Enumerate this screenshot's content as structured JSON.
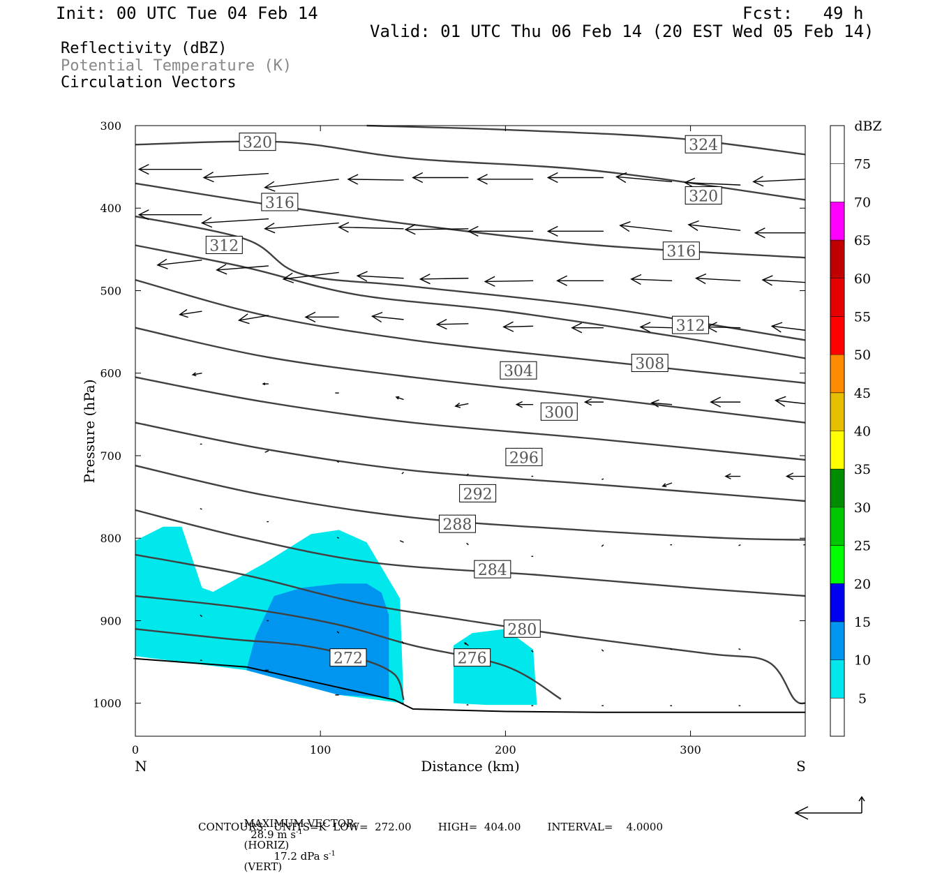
{
  "header": {
    "init": "Init: 00 UTC Tue 04 Feb 14",
    "fcst": "Fcst:   49 h",
    "valid": "Valid: 01 UTC Thu 06 Feb 14 (20 EST Wed 05 Feb 14)",
    "field1": "Reflectivity (dBZ)",
    "field2": "Potential Temperature (K)",
    "field3": "Circulation Vectors"
  },
  "footer": {
    "max_vector_label": "MAXIMUM VECTOR:",
    "horiz_value": "28.9 m s",
    "horiz_exp": "-1",
    "horiz_tag": "(HORIZ)",
    "vert_value": "17.2 dPa s",
    "vert_exp": "-1",
    "vert_tag": "(VERT)",
    "contours_line": "CONTOURS:  UNITS=K  LOW=  272.00        HIGH=  404.00        INTERVAL=    4.0000"
  },
  "colors": {
    "contour": "#404040",
    "dbz_5": "#00e8ec",
    "dbz_10": "#0096f0",
    "dbz_15": "#0000f0",
    "dbz_20": "#00ff00",
    "dbz_25": "#00c800",
    "dbz_30": "#008c00",
    "dbz_35": "#ffff00",
    "dbz_40": "#e6be00",
    "dbz_45": "#ff8c00",
    "dbz_50": "#ff0000",
    "dbz_55": "#e60000",
    "dbz_60": "#c00000",
    "dbz_65": "#ff00ff",
    "dbz_70": "#9b4fc8"
  },
  "chart_data": {
    "type": "cross-section",
    "xlabel": "Distance (km)",
    "ylabel": "Pressure (hPa)",
    "xlim": [
      0,
      362
    ],
    "ylim": [
      1040,
      300
    ],
    "xticks": [
      "0",
      "100",
      "200",
      "300"
    ],
    "yticks": [
      "300",
      "400",
      "500",
      "600",
      "700",
      "800",
      "900",
      "1000"
    ],
    "x_end_labels": {
      "left": "N",
      "right": "S"
    },
    "colorbar": {
      "title": "dBZ",
      "levels": [
        "5",
        "10",
        "15",
        "20",
        "25",
        "30",
        "35",
        "40",
        "45",
        "50",
        "55",
        "60",
        "65",
        "70",
        "75"
      ]
    },
    "terrain": [
      [
        0,
        946
      ],
      [
        60,
        956
      ],
      [
        100,
        976
      ],
      [
        140,
        996
      ],
      [
        150,
        1007
      ],
      [
        200,
        1010
      ],
      [
        250,
        1011
      ],
      [
        362,
        1011
      ]
    ],
    "reflectivity_5dbz": [
      [
        [
          0,
          803
        ],
        [
          15,
          786
        ],
        [
          25,
          786
        ],
        [
          36,
          860
        ],
        [
          42,
          865
        ],
        [
          70,
          830
        ],
        [
          95,
          795
        ],
        [
          110,
          790
        ],
        [
          125,
          805
        ],
        [
          143,
          873
        ],
        [
          145,
          1000
        ],
        [
          110,
          990
        ],
        [
          60,
          960
        ],
        [
          0,
          943
        ]
      ],
      [
        [
          172,
          1000
        ],
        [
          172,
          930
        ],
        [
          182,
          915
        ],
        [
          200,
          910
        ],
        [
          215,
          935
        ],
        [
          217,
          1002
        ],
        [
          190,
          1002
        ]
      ]
    ],
    "reflectivity_10dbz": [
      [
        [
          60,
          960
        ],
        [
          65,
          918
        ],
        [
          75,
          870
        ],
        [
          90,
          860
        ],
        [
          110,
          855
        ],
        [
          125,
          855
        ],
        [
          133,
          866
        ],
        [
          137,
          893
        ],
        [
          137,
          993
        ],
        [
          110,
          990
        ],
        [
          80,
          972
        ]
      ]
    ],
    "theta_contours": [
      {
        "label": "272",
        "points": [
          [
            0,
            910
          ],
          [
            50,
            922
          ],
          [
            90,
            930
          ],
          [
            120,
            945
          ],
          [
            140,
            965
          ],
          [
            145,
            996
          ]
        ]
      },
      {
        "label": "276",
        "points": [
          [
            0,
            870
          ],
          [
            60,
            885
          ],
          [
            110,
            905
          ],
          [
            150,
            930
          ],
          [
            200,
            955
          ],
          [
            230,
            995
          ]
        ]
      },
      {
        "label": "280",
        "points": [
          [
            0,
            820
          ],
          [
            60,
            845
          ],
          [
            120,
            878
          ],
          [
            180,
            900
          ],
          [
            240,
            920
          ],
          [
            310,
            940
          ],
          [
            342,
            950
          ],
          [
            356,
            995
          ],
          [
            362,
            1000
          ]
        ]
      },
      {
        "label": "284",
        "points": [
          [
            0,
            766
          ],
          [
            60,
            800
          ],
          [
            130,
            830
          ],
          [
            220,
            845
          ],
          [
            300,
            860
          ],
          [
            362,
            870
          ]
        ]
      },
      {
        "label": "288",
        "points": [
          [
            0,
            712
          ],
          [
            70,
            748
          ],
          [
            150,
            775
          ],
          [
            240,
            790
          ],
          [
            320,
            800
          ],
          [
            362,
            802
          ]
        ]
      },
      {
        "label": "292",
        "points": [
          [
            0,
            660
          ],
          [
            70,
            692
          ],
          [
            150,
            718
          ],
          [
            250,
            735
          ],
          [
            362,
            755
          ]
        ]
      },
      {
        "label": "296",
        "points": [
          [
            0,
            605
          ],
          [
            70,
            635
          ],
          [
            150,
            660
          ],
          [
            250,
            680
          ],
          [
            362,
            705
          ]
        ]
      },
      {
        "label": "300",
        "points": [
          [
            0,
            545
          ],
          [
            70,
            580
          ],
          [
            150,
            605
          ],
          [
            250,
            630
          ],
          [
            362,
            660
          ]
        ]
      },
      {
        "label": "304",
        "points": [
          [
            0,
            487
          ],
          [
            70,
            530
          ],
          [
            150,
            560
          ],
          [
            250,
            585
          ],
          [
            362,
            612
          ]
        ]
      },
      {
        "label": "308",
        "points": [
          [
            0,
            445
          ],
          [
            60,
            472
          ],
          [
            120,
            505
          ],
          [
            200,
            525
          ],
          [
            290,
            555
          ],
          [
            362,
            582
          ]
        ]
      },
      {
        "label": "312",
        "points": [
          [
            0,
            410
          ],
          [
            60,
            438
          ],
          [
            90,
            480
          ],
          [
            150,
            495
          ],
          [
            250,
            520
          ],
          [
            362,
            560
          ]
        ]
      },
      {
        "label": "316",
        "points": [
          [
            0,
            370
          ],
          [
            70,
            395
          ],
          [
            150,
            420
          ],
          [
            250,
            445
          ],
          [
            362,
            460
          ]
        ]
      },
      {
        "label": "320",
        "points": [
          [
            0,
            323
          ],
          [
            80,
            320
          ],
          [
            150,
            340
          ],
          [
            250,
            355
          ],
          [
            362,
            390
          ]
        ]
      },
      {
        "label": "324",
        "points": [
          [
            125,
            300
          ],
          [
            200,
            305
          ],
          [
            290,
            315
          ],
          [
            362,
            335
          ]
        ]
      }
    ],
    "contour_labels": [
      {
        "text": "320",
        "x": 66,
        "p": 320
      },
      {
        "text": "324",
        "x": 307,
        "p": 323
      },
      {
        "text": "316",
        "x": 78,
        "p": 393
      },
      {
        "text": "320",
        "x": 307,
        "p": 385
      },
      {
        "text": "312",
        "x": 48,
        "p": 445
      },
      {
        "text": "316",
        "x": 295,
        "p": 452
      },
      {
        "text": "312",
        "x": 300,
        "p": 542
      },
      {
        "text": "308",
        "x": 278,
        "p": 588
      },
      {
        "text": "304",
        "x": 207,
        "p": 597
      },
      {
        "text": "300",
        "x": 229,
        "p": 647
      },
      {
        "text": "296",
        "x": 210,
        "p": 702
      },
      {
        "text": "292",
        "x": 185,
        "p": 746
      },
      {
        "text": "288",
        "x": 174,
        "p": 783
      },
      {
        "text": "284",
        "x": 193,
        "p": 838
      },
      {
        "text": "280",
        "x": 209,
        "p": 910
      },
      {
        "text": "272",
        "x": 115,
        "p": 945
      },
      {
        "text": "276",
        "x": 182,
        "p": 945
      }
    ],
    "vectors": [
      [
        36,
        353,
        -34,
        0
      ],
      [
        72,
        358,
        -35,
        5
      ],
      [
        110,
        365,
        -40,
        10
      ],
      [
        145,
        366,
        -30,
        -1
      ],
      [
        180,
        363,
        -30,
        0
      ],
      [
        215,
        365,
        -30,
        0
      ],
      [
        253,
        363,
        -30,
        0
      ],
      [
        290,
        368,
        -30,
        -6
      ],
      [
        327,
        372,
        -30,
        -3
      ],
      [
        362,
        365,
        -28,
        3
      ],
      [
        36,
        408,
        -34,
        0
      ],
      [
        72,
        413,
        -36,
        5
      ],
      [
        110,
        418,
        -40,
        7
      ],
      [
        145,
        425,
        -35,
        -2
      ],
      [
        180,
        425,
        -34,
        1
      ],
      [
        215,
        428,
        -35,
        0
      ],
      [
        253,
        428,
        -30,
        0
      ],
      [
        290,
        428,
        -28,
        -7
      ],
      [
        327,
        427,
        -28,
        -7
      ],
      [
        362,
        430,
        -27,
        0
      ],
      [
        36,
        463,
        -24,
        6
      ],
      [
        72,
        470,
        -28,
        5
      ],
      [
        110,
        478,
        -30,
        8
      ],
      [
        145,
        485,
        -25,
        -3
      ],
      [
        180,
        485,
        -26,
        1
      ],
      [
        215,
        488,
        -26,
        1
      ],
      [
        253,
        488,
        -25,
        0
      ],
      [
        290,
        488,
        -22,
        -2
      ],
      [
        327,
        488,
        -24,
        -3
      ],
      [
        362,
        490,
        -23,
        -3
      ],
      [
        36,
        525,
        -12,
        4
      ],
      [
        72,
        530,
        -16,
        6
      ],
      [
        110,
        532,
        -18,
        0
      ],
      [
        145,
        535,
        -17,
        -4
      ],
      [
        180,
        540,
        -17,
        1
      ],
      [
        215,
        543,
        -16,
        1
      ],
      [
        253,
        545,
        -17,
        0
      ],
      [
        290,
        545,
        -17,
        -1
      ],
      [
        327,
        545,
        -18,
        -1
      ],
      [
        362,
        548,
        -18,
        -5
      ],
      [
        36,
        600,
        -5,
        2
      ],
      [
        72,
        613,
        -3,
        0
      ],
      [
        110,
        624,
        -2,
        0
      ],
      [
        145,
        632,
        -4,
        -3
      ],
      [
        180,
        637,
        -7,
        3
      ],
      [
        215,
        638,
        -9,
        0
      ],
      [
        253,
        635,
        -10,
        0
      ],
      [
        290,
        638,
        -11,
        -2
      ],
      [
        327,
        635,
        -16,
        0
      ],
      [
        362,
        637,
        -16,
        -4
      ],
      [
        36,
        686,
        -1,
        0
      ],
      [
        72,
        694,
        -2,
        2
      ],
      [
        110,
        708,
        -1,
        -1
      ],
      [
        145,
        720,
        -1,
        2
      ],
      [
        180,
        722,
        -1,
        2
      ],
      [
        215,
        725,
        -1,
        0
      ],
      [
        253,
        728,
        -1,
        1
      ],
      [
        290,
        733,
        -5,
        4
      ],
      [
        327,
        725,
        -8,
        0
      ],
      [
        362,
        725,
        -10,
        0
      ],
      [
        36,
        765,
        -1,
        -1
      ],
      [
        72,
        780,
        -1,
        0
      ],
      [
        110,
        800,
        -1,
        -1
      ],
      [
        145,
        805,
        -2,
        -2
      ],
      [
        180,
        808,
        -1,
        -2
      ],
      [
        215,
        822,
        -1,
        0
      ],
      [
        253,
        808,
        -1,
        2
      ],
      [
        290,
        808,
        -1,
        0
      ],
      [
        327,
        808,
        -1,
        1
      ],
      [
        362,
        808,
        -1,
        0
      ],
      [
        36,
        895,
        -1,
        -2
      ],
      [
        72,
        900,
        -1,
        0
      ],
      [
        110,
        915,
        -1,
        -2
      ],
      [
        145,
        928,
        -1,
        -3
      ],
      [
        180,
        930,
        -2,
        -3
      ],
      [
        215,
        938,
        -1,
        -2
      ],
      [
        253,
        937,
        -1,
        -2
      ],
      [
        290,
        935,
        -1,
        -1
      ],
      [
        327,
        935,
        -1,
        -1
      ],
      [
        0,
        946,
        -1,
        0
      ],
      [
        36,
        948,
        -1,
        0
      ],
      [
        72,
        960,
        -2,
        0
      ],
      [
        110,
        990,
        -2,
        0
      ],
      [
        145,
        1000,
        -1,
        0
      ],
      [
        180,
        1002,
        -1,
        0
      ],
      [
        215,
        1003,
        -1,
        0
      ],
      [
        253,
        1003,
        -1,
        0
      ],
      [
        290,
        1003,
        -1,
        0
      ],
      [
        327,
        1003,
        -1,
        0
      ]
    ]
  }
}
